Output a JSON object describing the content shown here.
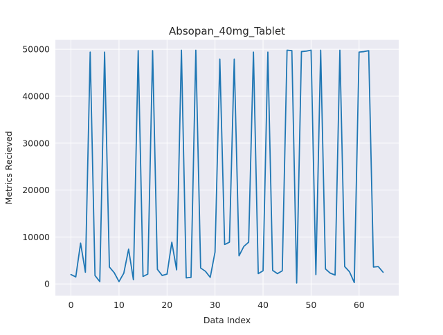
{
  "chart_data": {
    "type": "line",
    "title": "Absopan_40mg_Tablet",
    "xlabel": "Data Index",
    "ylabel": "Metrics Recieved",
    "xlim": [
      -3.25,
      68.25
    ],
    "ylim": [
      -2500,
      52000
    ],
    "xticks": [
      0,
      10,
      20,
      30,
      40,
      50,
      60
    ],
    "yticks": [
      0,
      10000,
      20000,
      30000,
      40000,
      50000
    ],
    "grid": true,
    "background": "#eaeaf2",
    "gridColor": "#ffffff",
    "lineColor": "#1f77b4",
    "series": [
      {
        "name": "",
        "x": [
          0,
          1,
          2,
          3,
          4,
          5,
          6,
          7,
          8,
          9,
          10,
          11,
          12,
          13,
          14,
          15,
          16,
          17,
          18,
          19,
          20,
          21,
          22,
          23,
          24,
          25,
          26,
          27,
          28,
          29,
          30,
          31,
          32,
          33,
          34,
          35,
          36,
          37,
          38,
          39,
          40,
          41,
          42,
          43,
          44,
          45,
          46,
          47,
          48,
          49,
          50,
          51,
          52,
          53,
          54,
          55,
          56,
          57,
          58,
          59,
          60,
          61,
          62,
          63,
          64,
          65
        ],
        "y": [
          2000,
          1500,
          8700,
          2500,
          49400,
          1800,
          500,
          49400,
          3600,
          2400,
          500,
          2300,
          7400,
          900,
          49700,
          1600,
          2100,
          49700,
          3100,
          1800,
          2100,
          8900,
          3000,
          49800,
          1300,
          1400,
          49800,
          3400,
          2700,
          1400,
          6800,
          47900,
          8400,
          8900,
          47900,
          6000,
          8000,
          8900,
          49400,
          2200,
          2800,
          49400,
          2900,
          2200,
          2800,
          49800,
          49700,
          200,
          49500,
          49600,
          49800,
          2000,
          49800,
          3200,
          2300,
          1900,
          49800,
          3700,
          2600,
          300,
          49400,
          49500,
          49700,
          3600,
          3700,
          2500
        ]
      }
    ]
  }
}
